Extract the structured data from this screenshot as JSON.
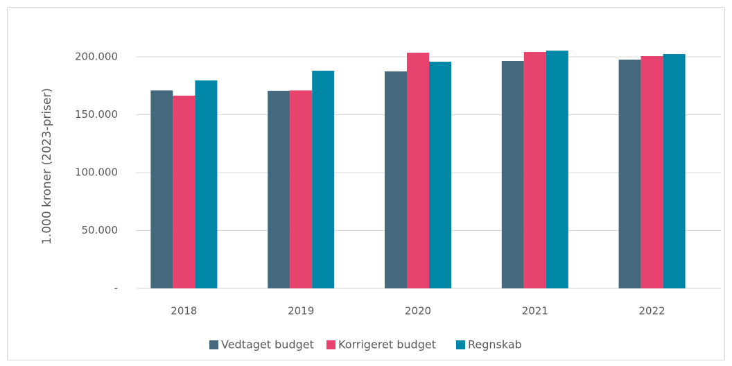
{
  "chart_data": {
    "type": "bar",
    "y_label": "1.000 kroner (2023-priser)",
    "categories": [
      "2018",
      "2019",
      "2020",
      "2021",
      "2022"
    ],
    "series": [
      {
        "name": "Vedtaget budget",
        "color": "#44687c",
        "values": [
          171000,
          170700,
          187400,
          196400,
          197600
        ]
      },
      {
        "name": "Korrigeret budget",
        "color": "#e8426f",
        "values": [
          166500,
          171000,
          203600,
          204200,
          200600
        ]
      },
      {
        "name": "Regnskab",
        "color": "#0087a8",
        "values": [
          179600,
          188000,
          195800,
          205400,
          202400
        ]
      }
    ],
    "ylim": [
      0,
      210000
    ],
    "yticks": [
      {
        "value": 0,
        "label": "-"
      },
      {
        "value": 50000,
        "label": "50.000"
      },
      {
        "value": 100000,
        "label": "100.000"
      },
      {
        "value": 150000,
        "label": "150.000"
      },
      {
        "value": 200000,
        "label": "200.000"
      }
    ],
    "grid": true,
    "legend": "bottom"
  }
}
